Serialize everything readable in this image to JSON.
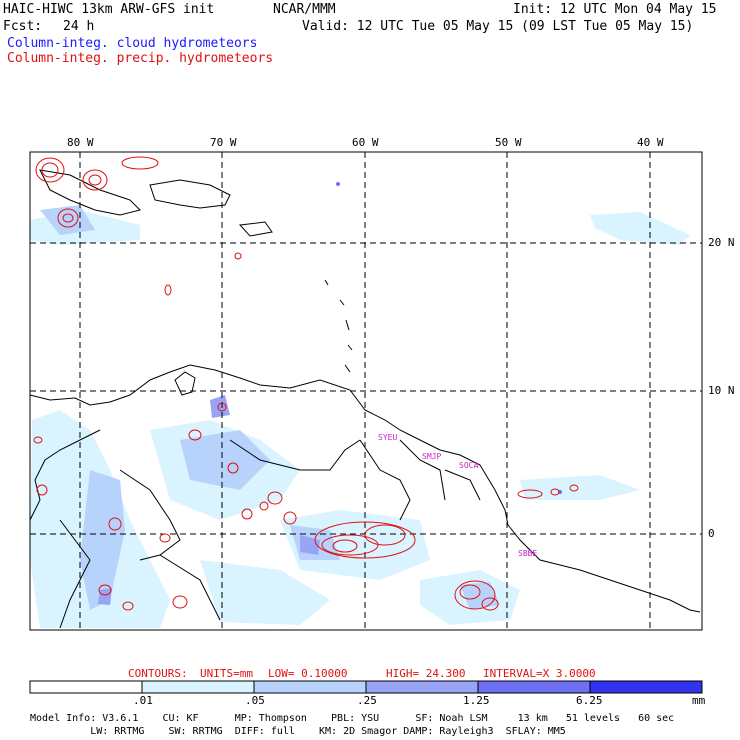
{
  "header": {
    "model": "HAIC-HIWC 13km ARW-GFS init",
    "org": "NCAR/MMM",
    "init": "Init: 12 UTC Mon 04 May 15",
    "fcst_label": "Fcst:",
    "fcst_value": "24 h",
    "valid": "Valid: 12 UTC Tue 05 May 15 (09 LST Tue 05 May 15)",
    "field_cloud": "Column-integ. cloud hydrometeors",
    "field_precip": "Column-integ. precip. hydrometeors"
  },
  "map": {
    "lon_labels": [
      "80 W",
      "70 W",
      "60 W",
      "50 W",
      "40 W"
    ],
    "lat_labels": [
      "20 N",
      "10 N",
      "0"
    ],
    "stations": [
      "SYEU",
      "SMJP",
      "SOCA",
      "SBBE"
    ],
    "colors": {
      "coast": "#000000",
      "grid": "#000000",
      "precip": "#e01010",
      "cloud": "#1a1aff"
    }
  },
  "contour_info": {
    "contours": "CONTOURS:",
    "units": "UNITS=mm",
    "low": "LOW= 0.10000",
    "high": "HIGH= 24.300",
    "interval": "INTERVAL=X 3.0000"
  },
  "colorbar": {
    "labels": [
      ".01",
      ".05",
      ".25",
      "1.25",
      "6.25"
    ],
    "units": "mm",
    "colors": [
      "#ffffff",
      "#d9f3ff",
      "#b7d2fb",
      "#9aa4f5",
      "#6f6ff2",
      "#3232f0"
    ]
  },
  "footer": {
    "line1": "Model Info: V3.6.1    CU: KF      MP: Thompson    PBL: YSU      SF: Noah LSM     13 km   51 levels   60 sec",
    "line2": "          LW: RRTMG    SW: RRTMG  DIFF: full    KM: 2D Smagor DAMP: Rayleigh3  SFLAY: MM5"
  }
}
